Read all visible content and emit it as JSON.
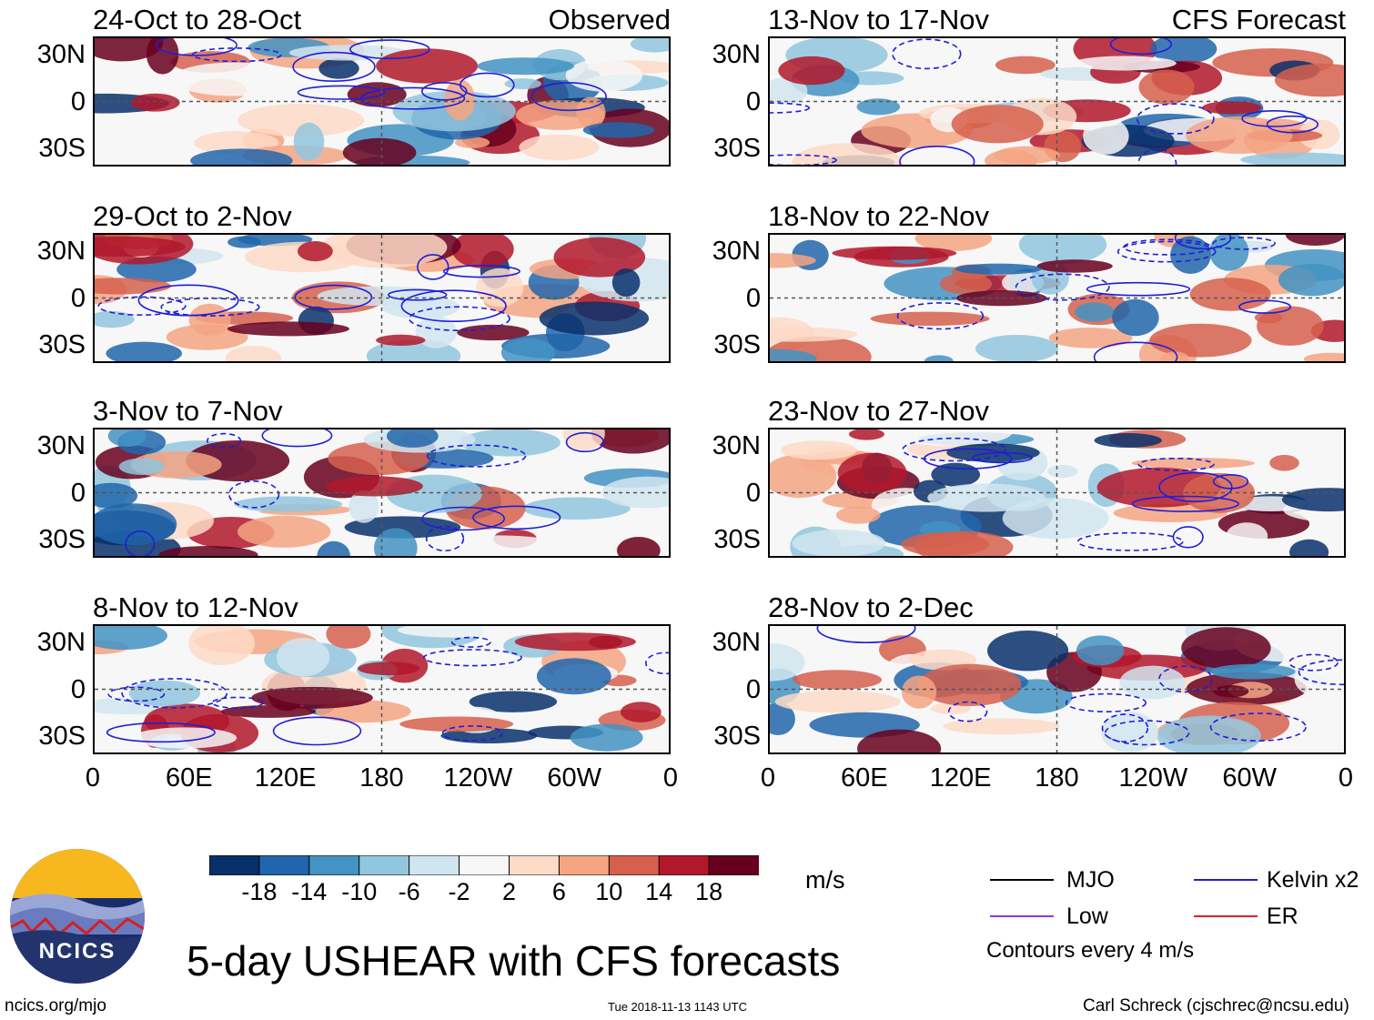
{
  "panels": [
    {
      "title": "24-Oct to 28-Oct",
      "label": "Observed",
      "seed": 1
    },
    {
      "title": "13-Nov to 17-Nov",
      "label": "CFS Forecast",
      "seed": 5
    },
    {
      "title": "29-Oct to 2-Nov",
      "label": "",
      "seed": 2
    },
    {
      "title": "18-Nov to 22-Nov",
      "label": "",
      "seed": 6
    },
    {
      "title": "3-Nov to 7-Nov",
      "label": "",
      "seed": 3
    },
    {
      "title": "23-Nov to 27-Nov",
      "label": "",
      "seed": 7
    },
    {
      "title": "8-Nov to 12-Nov",
      "label": "",
      "seed": 4
    },
    {
      "title": "28-Nov to 2-Dec",
      "label": "",
      "seed": 8
    }
  ],
  "chart_data": {
    "type": "heatmap",
    "title": "5-day USHEAR with CFS forecasts",
    "variable": "USHEAR",
    "units": "m/s",
    "y_ticks": [
      "30N",
      "0",
      "30S"
    ],
    "x_ticks": [
      "0",
      "60E",
      "120E",
      "180",
      "120W",
      "60W",
      "0"
    ],
    "xlim_deg_east": [
      0,
      360
    ],
    "ylim_deg": [
      -40,
      40
    ],
    "colorbar_levels": [
      -18,
      -14,
      -10,
      -6,
      -2,
      2,
      6,
      10,
      14,
      18
    ],
    "colorbar_labels": [
      "-18",
      "-14",
      "-10",
      "-6",
      "-2",
      "2",
      "6",
      "10",
      "14",
      "18"
    ],
    "colorbar_colors": [
      "#08306b",
      "#2166ac",
      "#4393c3",
      "#92c5de",
      "#d1e5f0",
      "#f7f7f7",
      "#fddbc7",
      "#f4a582",
      "#d6604d",
      "#b2182b",
      "#67001f"
    ],
    "contour_note": "Contours every 4 m/s",
    "legend": [
      {
        "label": "MJO",
        "color": "#000000"
      },
      {
        "label": "Kelvin x2",
        "color": "#1f1fd6"
      },
      {
        "label": "Low",
        "color": "#9933dd"
      },
      {
        "label": "ER",
        "color": "#dd2222"
      }
    ]
  },
  "footer": {
    "logo_text": "NCICS",
    "site": "ncics.org/mjo",
    "timestamp": "Tue 2018-11-13 1143 UTC",
    "credit": "Carl Schreck (cjschrec@ncsu.edu)"
  }
}
